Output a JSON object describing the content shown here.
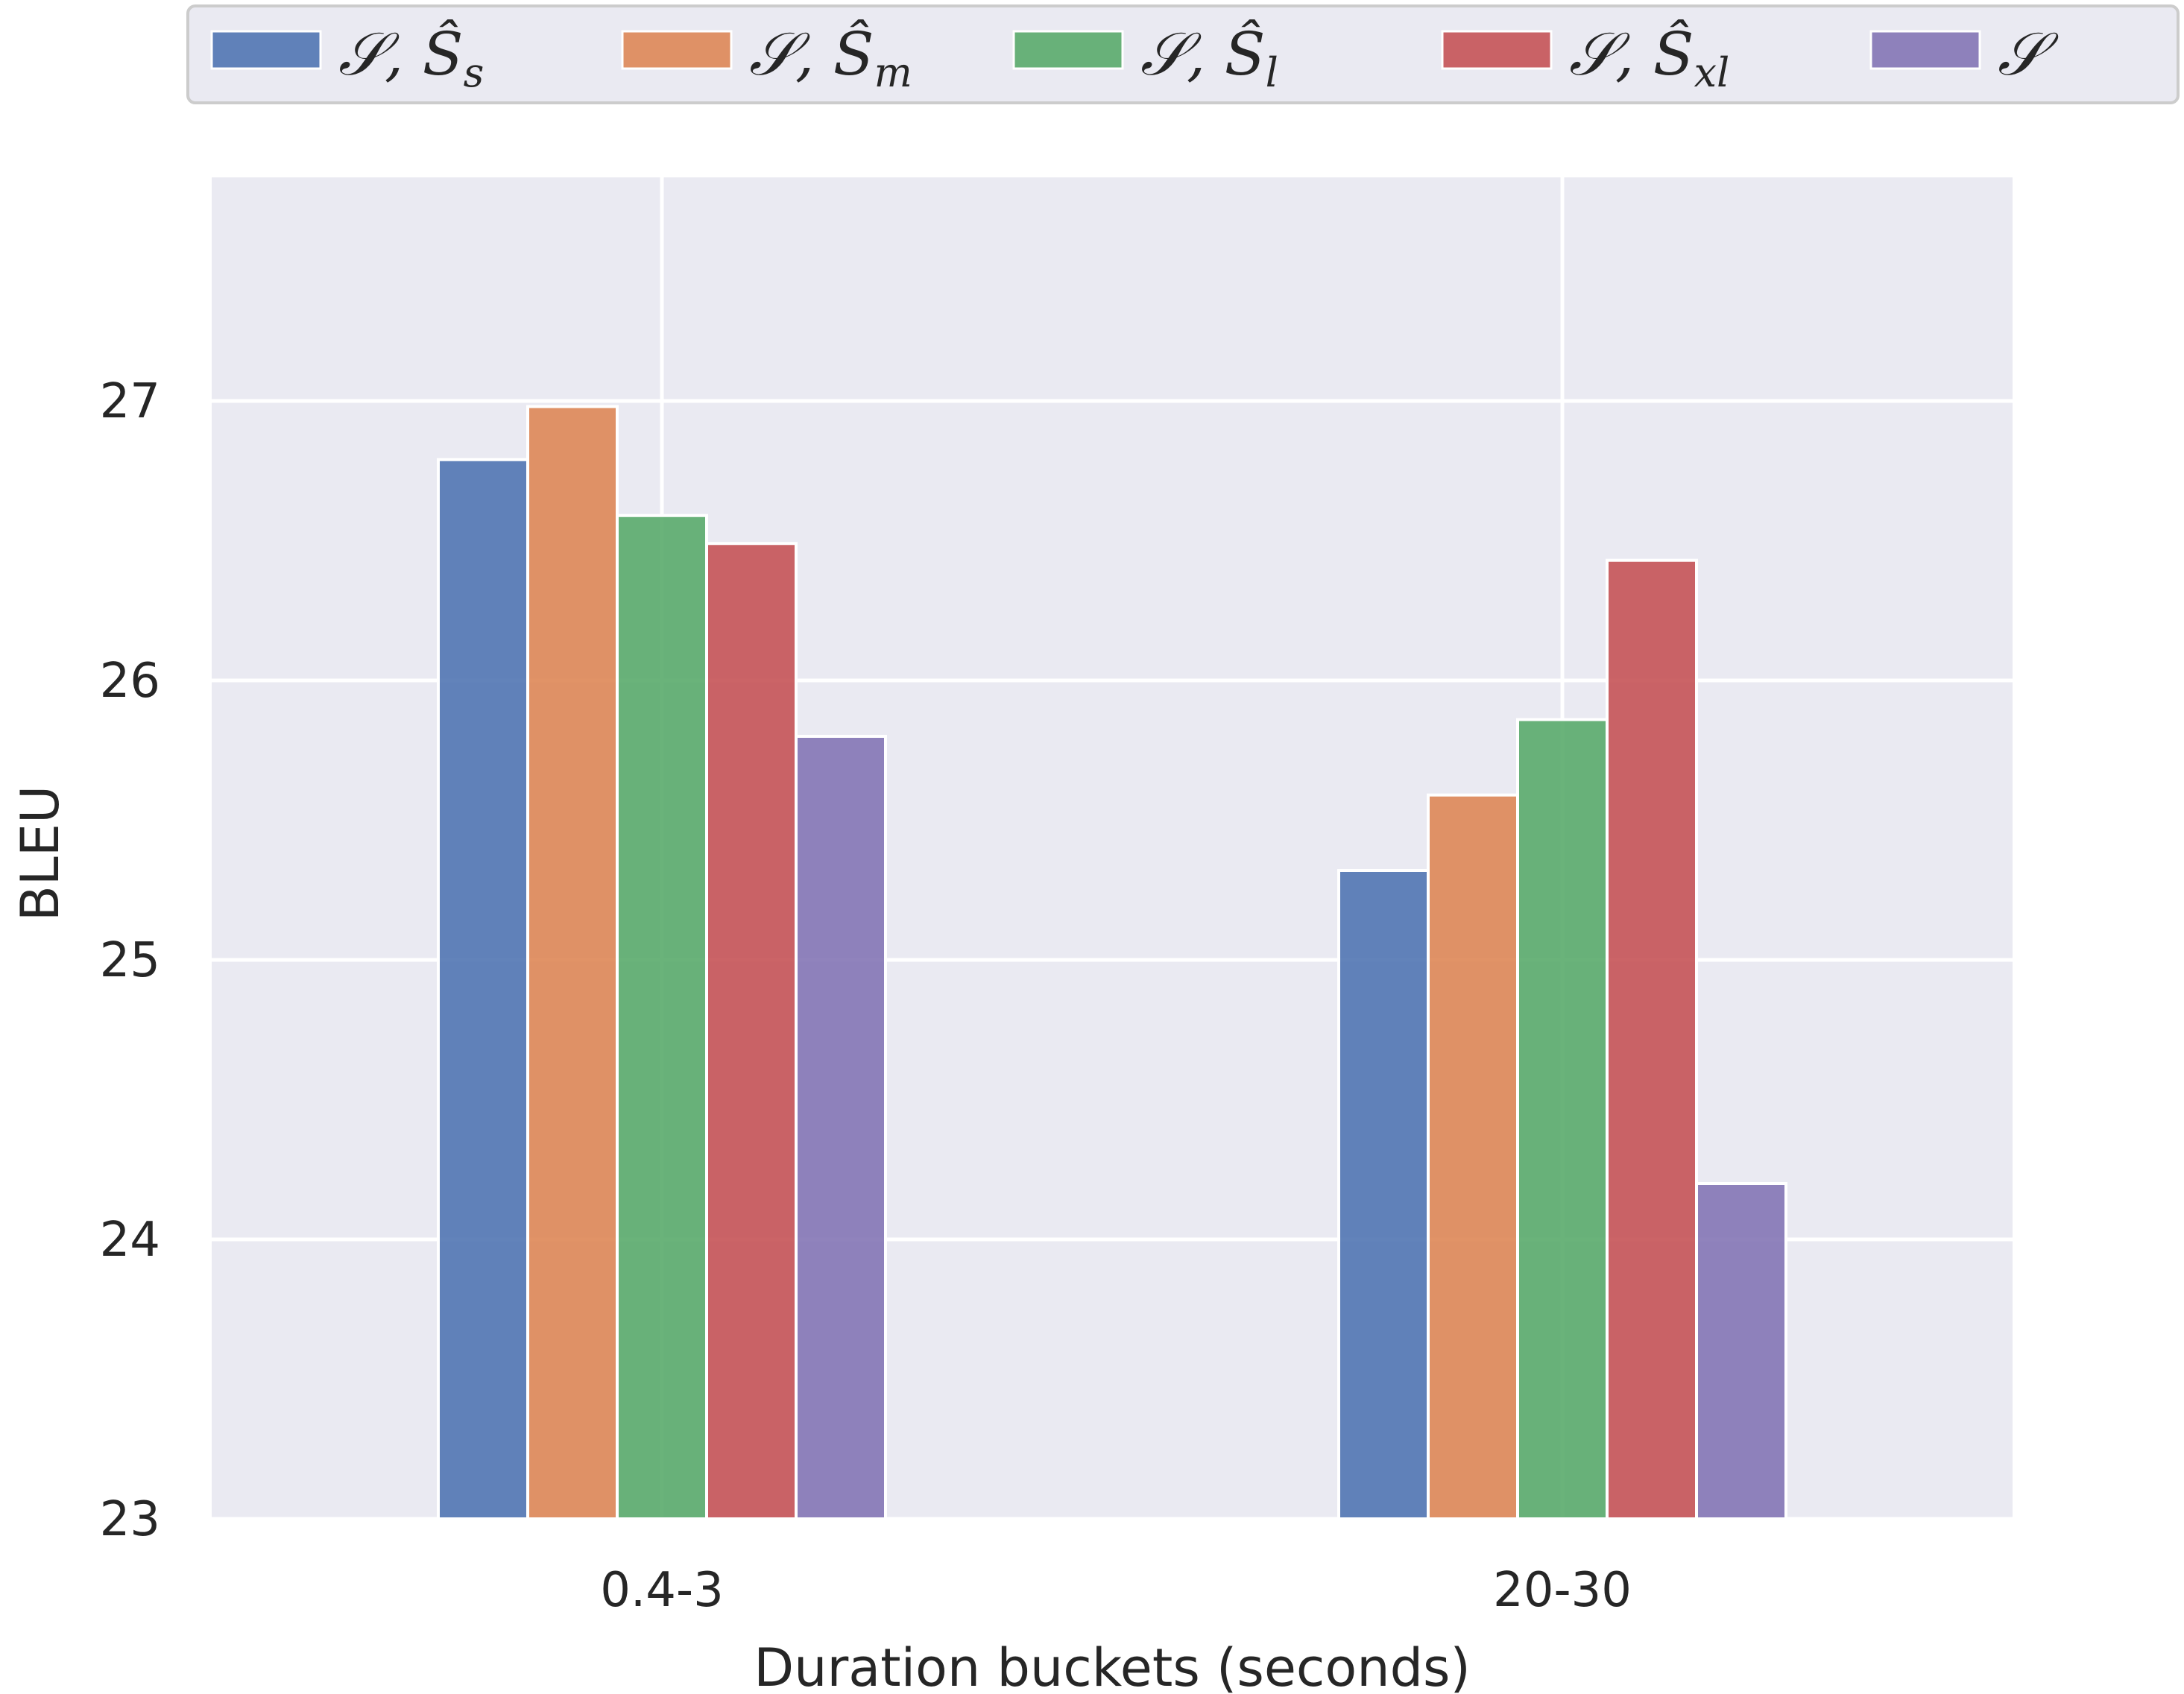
{
  "chart_data": {
    "type": "bar",
    "categories": [
      "0.4-3",
      "20-30"
    ],
    "series": [
      {
        "name": "𝒮, Ŝ_s",
        "name_main": "𝒮, Ŝ",
        "name_sub": "s",
        "color": "#4c72b0",
        "values": [
          26.79,
          25.32
        ]
      },
      {
        "name": "𝒮, Ŝ_m",
        "name_main": "𝒮, Ŝ",
        "name_sub": "m",
        "color": "#dd8452",
        "values": [
          26.98,
          25.59
        ]
      },
      {
        "name": "𝒮, Ŝ_l",
        "name_main": "𝒮, Ŝ",
        "name_sub": "l",
        "color": "#55a868",
        "values": [
          26.59,
          25.86
        ]
      },
      {
        "name": "𝒮, Ŝ_xl",
        "name_main": "𝒮, Ŝ",
        "name_sub": "xl",
        "color": "#c44e52",
        "values": [
          26.49,
          26.43
        ]
      },
      {
        "name": "𝒮",
        "name_main": "𝒮",
        "name_sub": "",
        "color": "#8172b3",
        "values": [
          25.8,
          24.2
        ]
      }
    ],
    "xlabel": "Duration buckets (seconds)",
    "ylabel": "BLEU",
    "ylim": [
      23,
      27.8
    ],
    "yticks": [
      23,
      24,
      25,
      26,
      27
    ],
    "grid": true,
    "legend_position": "top"
  }
}
